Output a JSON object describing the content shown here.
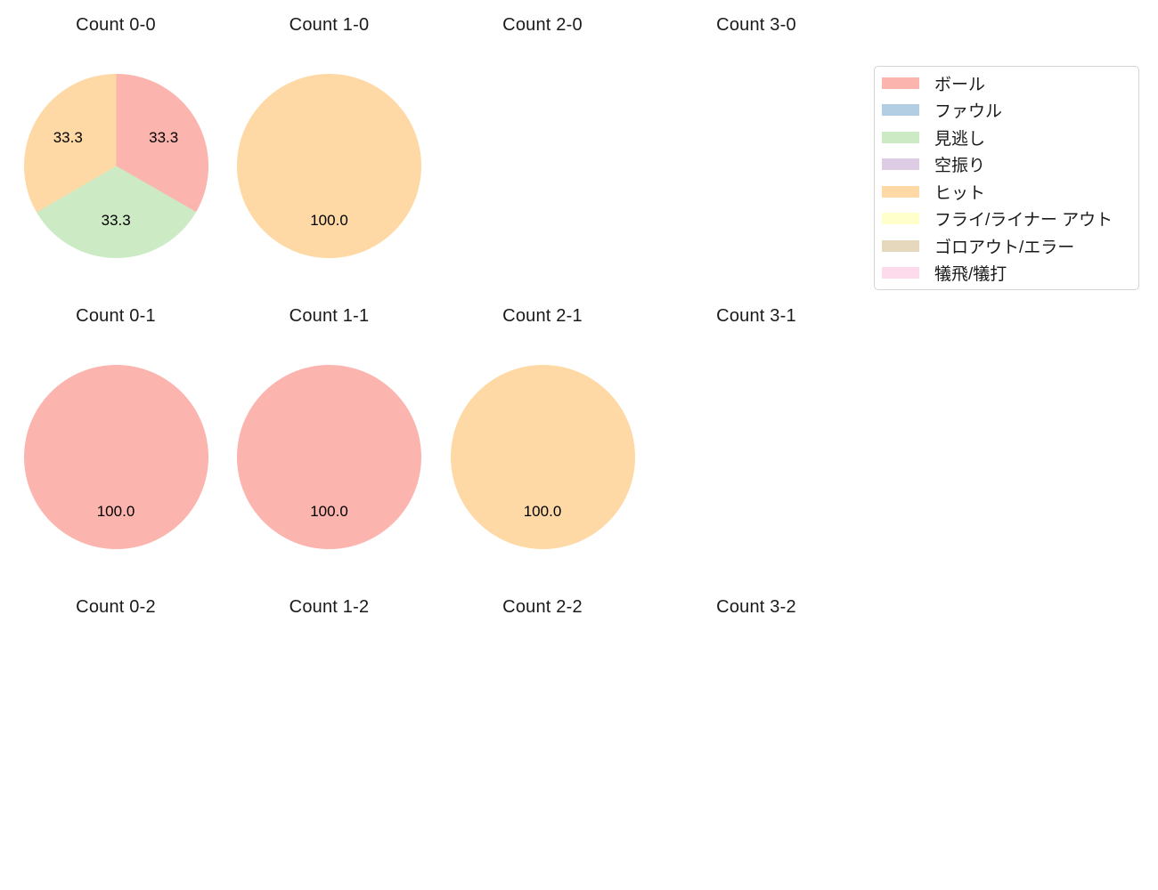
{
  "figure": {
    "background": "#ffffff",
    "text_color": "#1a1a1a"
  },
  "chart_data": {
    "type": "pie",
    "layout": "grid of 12 pie subplots (4 columns x 3 rows), percentages shown inside slices",
    "grid": {
      "columns": 4,
      "rows": 3
    },
    "start_angle": 90,
    "direction": "clockwise",
    "legend": {
      "position": "upper right",
      "items": [
        {
          "label": "ボール",
          "color": "#fbb4ae"
        },
        {
          "label": "ファウル",
          "color": "#b3cde3"
        },
        {
          "label": "見逃し",
          "color": "#ccebc5"
        },
        {
          "label": "空振り",
          "color": "#decbe4"
        },
        {
          "label": "ヒット",
          "color": "#fed9a6"
        },
        {
          "label": "フライ/ライナー アウト",
          "color": "#ffffcc"
        },
        {
          "label": "ゴロアウト/エラー",
          "color": "#e5d8bd"
        },
        {
          "label": "犠飛/犠打",
          "color": "#fddaec"
        }
      ]
    },
    "charts": [
      {
        "title": "Count 0-0",
        "slices": [
          {
            "category": "ボール",
            "percent": 33.3,
            "color": "#fbb4ae"
          },
          {
            "category": "見逃し",
            "percent": 33.3,
            "color": "#ccebc5"
          },
          {
            "category": "ヒット",
            "percent": 33.4,
            "color": "#fed9a6"
          }
        ],
        "slice_display_labels": [
          "33.3",
          "33.3",
          "33.3"
        ]
      },
      {
        "title": "Count 1-0",
        "slices": [
          {
            "category": "ヒット",
            "percent": 100.0,
            "color": "#fed9a6"
          }
        ],
        "slice_display_labels": [
          "100.0"
        ]
      },
      {
        "title": "Count 2-0",
        "slices": [],
        "slice_display_labels": []
      },
      {
        "title": "Count 3-0",
        "slices": [],
        "slice_display_labels": []
      },
      {
        "title": "Count 0-1",
        "slices": [
          {
            "category": "ボール",
            "percent": 100.0,
            "color": "#fbb4ae"
          }
        ],
        "slice_display_labels": [
          "100.0"
        ]
      },
      {
        "title": "Count 1-1",
        "slices": [
          {
            "category": "ボール",
            "percent": 100.0,
            "color": "#fbb4ae"
          }
        ],
        "slice_display_labels": [
          "100.0"
        ]
      },
      {
        "title": "Count 2-1",
        "slices": [
          {
            "category": "ヒット",
            "percent": 100.0,
            "color": "#fed9a6"
          }
        ],
        "slice_display_labels": [
          "100.0"
        ]
      },
      {
        "title": "Count 3-1",
        "slices": [],
        "slice_display_labels": []
      },
      {
        "title": "Count 0-2",
        "slices": [],
        "slice_display_labels": []
      },
      {
        "title": "Count 1-2",
        "slices": [],
        "slice_display_labels": []
      },
      {
        "title": "Count 2-2",
        "slices": [],
        "slice_display_labels": []
      },
      {
        "title": "Count 3-2",
        "slices": [],
        "slice_display_labels": []
      }
    ]
  }
}
